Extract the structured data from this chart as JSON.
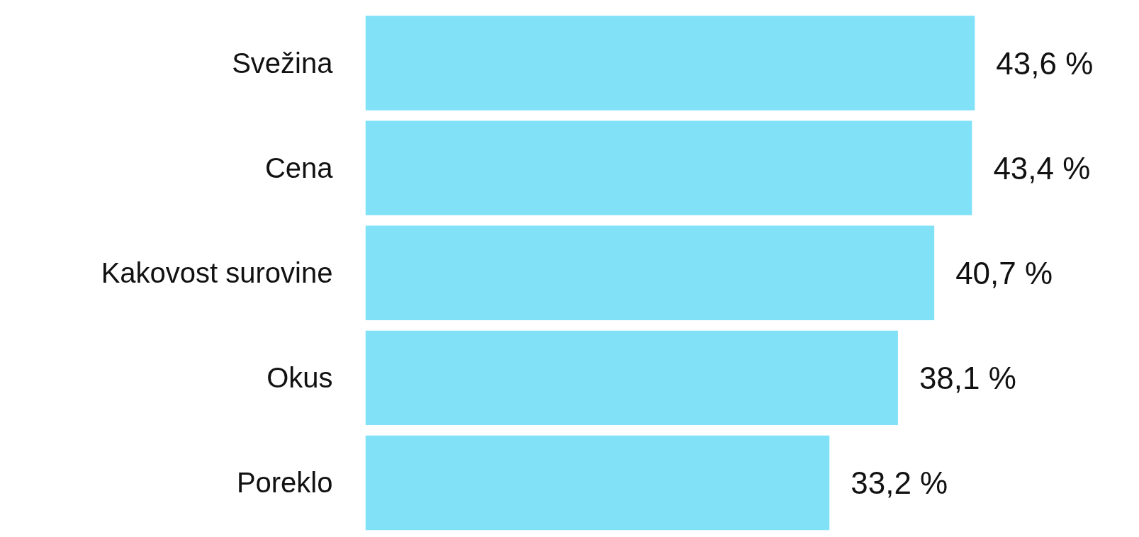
{
  "chart_data": {
    "type": "bar",
    "orientation": "horizontal",
    "categories": [
      "Svežina",
      "Cena",
      "Kakovost surovine",
      "Okus",
      "Poreklo"
    ],
    "values": [
      43.6,
      43.4,
      40.7,
      38.1,
      33.2
    ],
    "value_labels": [
      "43,6 %",
      "43,4 %",
      "40,7 %",
      "38,1 %",
      "33,2 %"
    ],
    "color": "#80e1f7",
    "grid": false
  }
}
